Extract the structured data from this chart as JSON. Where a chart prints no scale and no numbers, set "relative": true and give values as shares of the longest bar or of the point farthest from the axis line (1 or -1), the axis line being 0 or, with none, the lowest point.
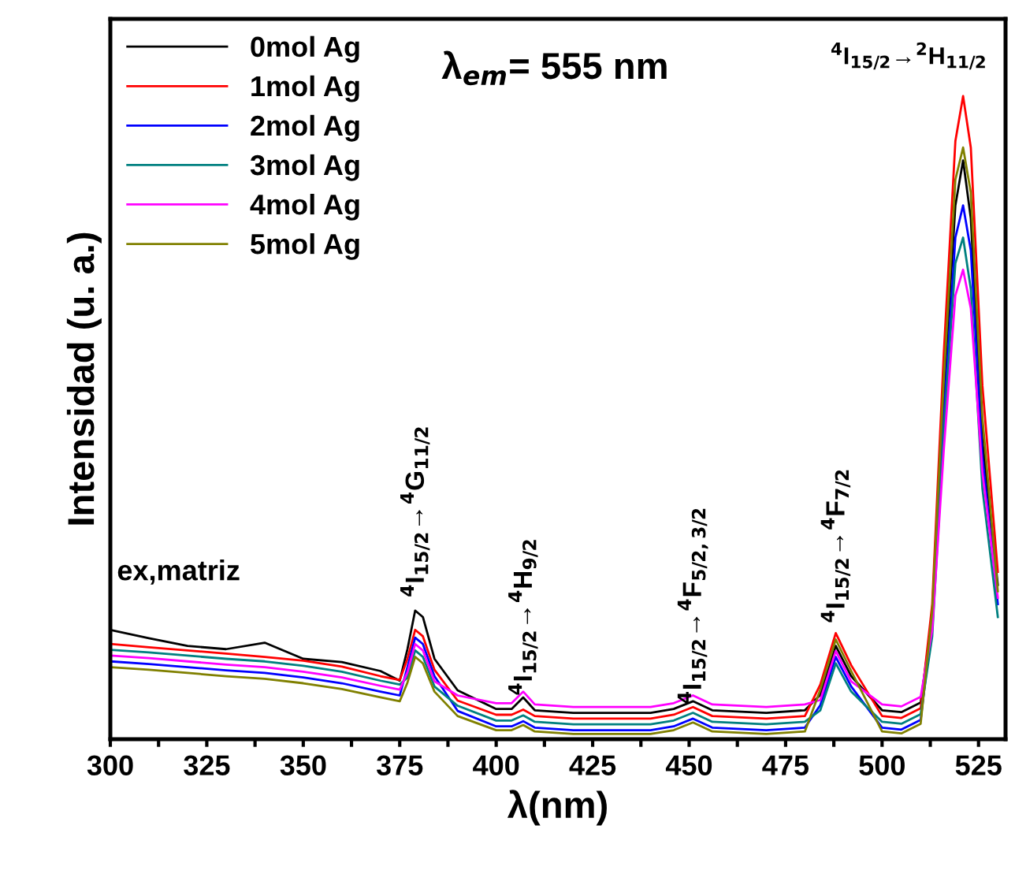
{
  "chart_data": {
    "type": "line",
    "relative": true,
    "xlabel": "λ(nm)",
    "ylabel": "Intensidad (u. a.)",
    "xlim": [
      300,
      532
    ],
    "xticks": [
      300,
      {
        "value": 312.5,
        "label": null
      },
      325,
      {
        "value": 337.5,
        "label": null
      },
      350,
      {
        "value": 362.5,
        "label": null
      },
      375,
      {
        "value": 387.5,
        "label": null
      },
      400,
      {
        "value": 412.5,
        "label": null
      },
      425,
      {
        "value": 437.5,
        "label": null
      },
      450,
      {
        "value": 462.5,
        "label": null
      },
      475,
      {
        "value": 487.5,
        "label": null
      },
      500,
      {
        "value": 512.5,
        "label": null
      },
      525
    ],
    "x": [
      300,
      310,
      320,
      330,
      340,
      350,
      360,
      370,
      375,
      377,
      379,
      381,
      384,
      390,
      400,
      404,
      407,
      410,
      420,
      440,
      446,
      451,
      456,
      470,
      480,
      484,
      488,
      492,
      500,
      505,
      510,
      513,
      516,
      519,
      521,
      523,
      526,
      530
    ],
    "legend": "top left",
    "grid": false,
    "marker": "none",
    "line_style": "solid",
    "series": [
      {
        "name": "0mol Ag",
        "color": "#000000",
        "values": [
          0.17,
          0.157,
          0.145,
          0.14,
          0.15,
          0.125,
          0.12,
          0.106,
          0.091,
          0.14,
          0.2,
          0.19,
          0.125,
          0.076,
          0.047,
          0.047,
          0.065,
          0.045,
          0.041,
          0.041,
          0.047,
          0.059,
          0.045,
          0.041,
          0.045,
          0.069,
          0.145,
          0.098,
          0.045,
          0.042,
          0.057,
          0.19,
          0.54,
          0.83,
          0.9,
          0.81,
          0.465,
          0.24
        ]
      },
      {
        "name": "1mol Ag",
        "color": "#ff0000",
        "values": [
          0.148,
          0.143,
          0.138,
          0.133,
          0.128,
          0.122,
          0.113,
          0.098,
          0.092,
          0.125,
          0.17,
          0.16,
          0.108,
          0.06,
          0.038,
          0.038,
          0.046,
          0.036,
          0.032,
          0.032,
          0.038,
          0.05,
          0.036,
          0.032,
          0.036,
          0.085,
          0.165,
          0.115,
          0.036,
          0.033,
          0.048,
          0.21,
          0.6,
          0.93,
          1.0,
          0.92,
          0.55,
          0.26
        ]
      },
      {
        "name": "2mol Ag",
        "color": "#0000ff",
        "values": [
          0.121,
          0.117,
          0.112,
          0.107,
          0.103,
          0.096,
          0.087,
          0.074,
          0.068,
          0.112,
          0.158,
          0.148,
          0.098,
          0.044,
          0.02,
          0.02,
          0.028,
          0.018,
          0.014,
          0.014,
          0.02,
          0.032,
          0.018,
          0.014,
          0.018,
          0.053,
          0.128,
          0.082,
          0.018,
          0.015,
          0.03,
          0.18,
          0.5,
          0.78,
          0.83,
          0.76,
          0.44,
          0.21
        ]
      },
      {
        "name": "3mol Ag",
        "color": "#008080",
        "values": [
          0.139,
          0.135,
          0.13,
          0.125,
          0.121,
          0.114,
          0.105,
          0.091,
          0.085,
          0.096,
          0.138,
          0.128,
          0.082,
          0.052,
          0.029,
          0.029,
          0.037,
          0.027,
          0.023,
          0.023,
          0.029,
          0.041,
          0.027,
          0.023,
          0.027,
          0.045,
          0.118,
          0.074,
          0.027,
          0.024,
          0.039,
          0.16,
          0.48,
          0.74,
          0.78,
          0.7,
          0.39,
          0.19
        ]
      },
      {
        "name": "4mol Ag",
        "color": "#ff00ff",
        "values": [
          0.13,
          0.126,
          0.121,
          0.116,
          0.112,
          0.105,
          0.096,
          0.083,
          0.077,
          0.104,
          0.148,
          0.138,
          0.09,
          0.068,
          0.056,
          0.056,
          0.074,
          0.054,
          0.05,
          0.05,
          0.056,
          0.068,
          0.054,
          0.05,
          0.054,
          0.061,
          0.137,
          0.09,
          0.054,
          0.051,
          0.066,
          0.17,
          0.45,
          0.69,
          0.73,
          0.67,
          0.415,
          0.22
        ]
      },
      {
        "name": "5mol Ag",
        "color": "#808000",
        "values": [
          0.112,
          0.108,
          0.103,
          0.098,
          0.094,
          0.087,
          0.078,
          0.065,
          0.059,
          0.088,
          0.128,
          0.118,
          0.074,
          0.036,
          0.014,
          0.014,
          0.022,
          0.012,
          0.008,
          0.008,
          0.014,
          0.026,
          0.012,
          0.008,
          0.012,
          0.077,
          0.155,
          0.106,
          0.012,
          0.009,
          0.024,
          0.2,
          0.56,
          0.87,
          0.92,
          0.85,
          0.5,
          0.23
        ]
      }
    ],
    "annotations": [
      {
        "text": "ex,matriz",
        "x": 300,
        "y": 0.17
      },
      "λ$_{em}$= 555 nm",
      {
        "text": "$^{4}$I$_{15/2}$→$^{4}$G$_{11/2}$",
        "x": 379,
        "y": 0.2
      },
      {
        "text": "$^{4}$I$_{15/2}$→$^{4}$H$_{9/2}$",
        "x": 407,
        "y": 0.047
      },
      {
        "text": "$^{4}$I$_{15/2}$→$^{4}$F$_{5/2,3/2}$",
        "x": 451,
        "y": 0.034
      },
      {
        "text": "$^{4}$I$_{15/2}$→$^{4}$F$_{7/2}$",
        "x": 488,
        "y": 0.16
      },
      {
        "text": "$^{4}$I$_{15/2}$→$^{2}$H$_{11/2}$",
        "x": 521,
        "y": 1.0
      }
    ]
  }
}
